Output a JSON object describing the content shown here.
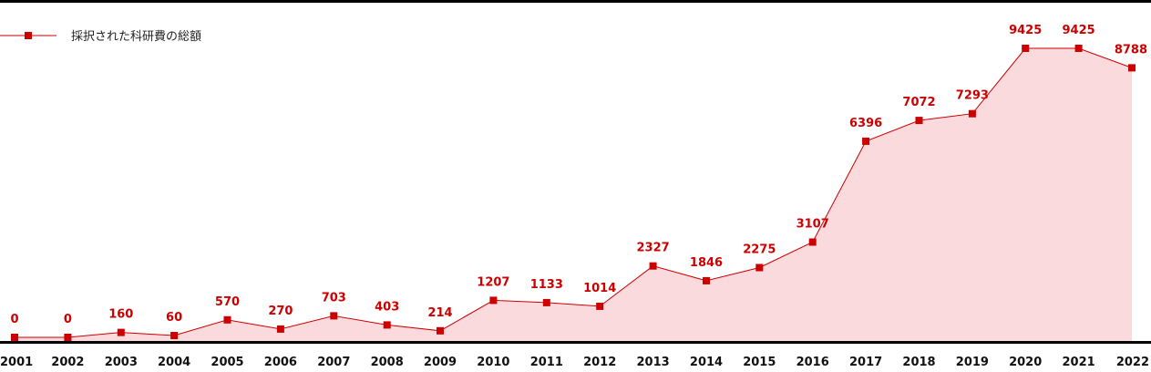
{
  "chart_data": {
    "type": "area",
    "categories": [
      "2001",
      "2002",
      "2003",
      "2004",
      "2005",
      "2006",
      "2007",
      "2008",
      "2009",
      "2010",
      "2011",
      "2012",
      "2013",
      "2014",
      "2015",
      "2016",
      "2017",
      "2018",
      "2019",
      "2020",
      "2021",
      "2022"
    ],
    "series": [
      {
        "name": "採択された科研費の総額",
        "values": [
          0,
          0,
          160,
          60,
          570,
          270,
          703,
          403,
          214,
          1207,
          1133,
          1014,
          2327,
          1846,
          2275,
          3107,
          6396,
          7072,
          7293,
          9425,
          9425,
          8788
        ],
        "color": "#cc0000",
        "fill": "#fadadd"
      }
    ],
    "ylim": [
      0,
      11000
    ],
    "grid": false,
    "legend": "top-left"
  }
}
